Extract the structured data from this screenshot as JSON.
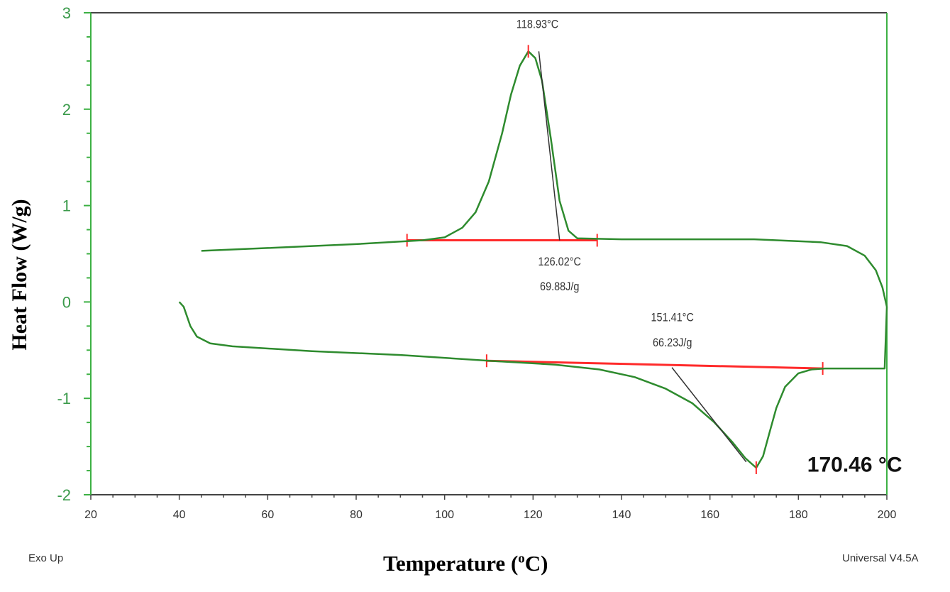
{
  "chart_data": {
    "type": "line",
    "xlabel": "Temperature (",
    "xlabel_sup": "o",
    "xlabel_end": "C)",
    "ylabel": "Heat Flow (W/g)",
    "xlim": [
      20,
      200
    ],
    "ylim": [
      -2,
      3
    ],
    "xticks": [
      "20",
      "40",
      "60",
      "80",
      "100",
      "120",
      "140",
      "160",
      "180",
      "200"
    ],
    "yticks": [
      "-2",
      "-1",
      "0",
      "1",
      "2",
      "3"
    ],
    "footer_left": "Exo Up",
    "footer_right": "Universal V4.5A",
    "colors": {
      "curve": "#2e8b2e",
      "baseline": "#ff2a2a",
      "axis": "#3cb043",
      "tangent": "#333333",
      "ticklabel": "#3a9a4a"
    },
    "series": [
      {
        "name": "cooling",
        "points": [
          [
            45,
            0.53
          ],
          [
            60,
            0.56
          ],
          [
            80,
            0.6
          ],
          [
            95,
            0.64
          ],
          [
            100,
            0.67
          ],
          [
            104,
            0.77
          ],
          [
            107,
            0.93
          ],
          [
            110,
            1.25
          ],
          [
            113,
            1.75
          ],
          [
            115,
            2.15
          ],
          [
            117,
            2.45
          ],
          [
            118.93,
            2.6
          ],
          [
            120.5,
            2.53
          ],
          [
            122,
            2.3
          ],
          [
            124,
            1.7
          ],
          [
            126,
            1.05
          ],
          [
            128,
            0.74
          ],
          [
            130,
            0.66
          ],
          [
            140,
            0.65
          ],
          [
            170,
            0.65
          ],
          [
            185,
            0.62
          ],
          [
            191,
            0.58
          ],
          [
            195,
            0.48
          ],
          [
            197.5,
            0.33
          ],
          [
            199,
            0.15
          ],
          [
            200,
            -0.05
          ]
        ]
      },
      {
        "name": "heating",
        "points": [
          [
            40,
            0.0
          ],
          [
            41,
            -0.05
          ],
          [
            42.5,
            -0.25
          ],
          [
            44,
            -0.36
          ],
          [
            47,
            -0.43
          ],
          [
            52,
            -0.46
          ],
          [
            70,
            -0.51
          ],
          [
            90,
            -0.55
          ],
          [
            110,
            -0.61
          ],
          [
            125,
            -0.65
          ],
          [
            135,
            -0.7
          ],
          [
            143,
            -0.78
          ],
          [
            150,
            -0.9
          ],
          [
            156,
            -1.05
          ],
          [
            161,
            -1.25
          ],
          [
            165,
            -1.45
          ],
          [
            168,
            -1.62
          ],
          [
            170.46,
            -1.72
          ],
          [
            172,
            -1.6
          ],
          [
            173.5,
            -1.35
          ],
          [
            175,
            -1.1
          ],
          [
            177,
            -0.88
          ],
          [
            180,
            -0.74
          ],
          [
            183,
            -0.7
          ],
          [
            186,
            -0.69
          ],
          [
            199.5,
            -0.69
          ],
          [
            199.8,
            -0.3
          ],
          [
            200,
            -0.05
          ]
        ]
      }
    ],
    "baselines": [
      {
        "from": [
          91.5,
          0.64
        ],
        "to": [
          134.5,
          0.64
        ]
      },
      {
        "from": [
          109.5,
          -0.61
        ],
        "to": [
          185.5,
          -0.69
        ]
      }
    ],
    "tangents": [
      {
        "from": [
          121.3,
          2.6
        ],
        "to": [
          126.0,
          0.64
        ]
      },
      {
        "from": [
          151.4,
          -0.68
        ],
        "to": [
          168.2,
          -1.66
        ]
      }
    ],
    "peak_markers": [
      [
        118.93,
        2.6
      ],
      [
        170.46,
        -1.72
      ]
    ],
    "annotations": [
      {
        "text": "118.93°C",
        "at": [
          121,
          2.84
        ]
      },
      {
        "text": "126.02°C",
        "at": [
          126,
          0.38
        ]
      },
      {
        "text": "69.88J/g",
        "at": [
          126,
          0.12
        ]
      },
      {
        "text": "151.41°C",
        "at": [
          151.5,
          -0.2
        ]
      },
      {
        "text": "66.23J/g",
        "at": [
          151.5,
          -0.46
        ]
      },
      {
        "text": "170.46 °C",
        "at": [
          182,
          -1.76
        ],
        "large": true
      }
    ]
  }
}
